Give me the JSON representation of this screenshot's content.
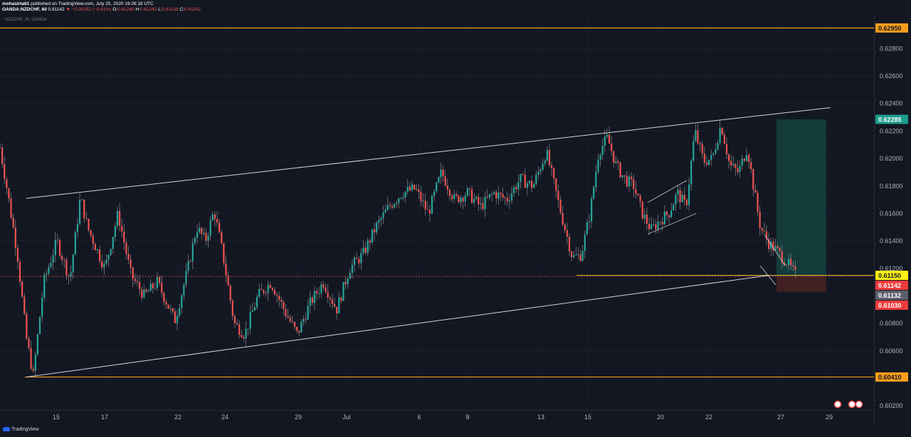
{
  "header": {
    "author": "mohasirta61",
    "published_text": "published on TradingView.com, July 25, 2020 19:26:18 UTC",
    "symbol": "OANDA:NZDCHF, 60",
    "close_value": "0.61142",
    "change_text": "▼ −0.00252 (−0.41%)",
    "open_label": "O:",
    "open_value": "0.61240",
    "high_label": "H:",
    "high_value": "0.61262",
    "low_label": "L:",
    "low_value": "0.61138",
    "close_label": "C:",
    "close_value2": "0.61142"
  },
  "symbol_tag": "NZDCHF, 1h, OANDA",
  "footer": {
    "brand": "TradingView"
  },
  "colors": {
    "background": "#131722",
    "up_candle": "#26a69a",
    "down_candle": "#ef5350",
    "wick": "#8a8a8a",
    "support_line": "#f59d1b",
    "channel_line": "#d1d4dc",
    "target_zone": "#123b3a",
    "stop_zone": "#402022",
    "label_green": "#1e9c8d",
    "label_yellow": "#fff212",
    "label_red": "#ef3b3b",
    "label_gray": "#5d606b",
    "label_orange": "#f59d1b"
  },
  "chart_data": {
    "type": "candlestick",
    "instrument": "NZDCHF",
    "timeframe": "1h",
    "x_ticks": [
      "15",
      "17",
      "22",
      "24",
      "29",
      "Jul",
      "6",
      "8",
      "13",
      "15",
      "20",
      "22",
      "27",
      "29"
    ],
    "y_ticks": [
      "0.62800",
      "0.62600",
      "0.62400",
      "0.62200",
      "0.62000",
      "0.61800",
      "0.61600",
      "0.61400",
      "0.61200",
      "0.60800",
      "0.60600",
      "0.60200"
    ],
    "ylim": [
      0.6017,
      0.6305
    ],
    "price_labels": [
      {
        "value": "0.62950",
        "kind": "support"
      },
      {
        "value": "0.62285",
        "kind": "target"
      },
      {
        "value": "0.61150",
        "kind": "entry"
      },
      {
        "value": "0.61142",
        "kind": "last"
      },
      {
        "value": "0.61132",
        "kind": "gray"
      },
      {
        "value": "0.61030",
        "kind": "stop"
      },
      {
        "value": "0.60410",
        "kind": "support"
      }
    ],
    "horizontal_levels": [
      0.6295,
      0.6041,
      0.6115
    ],
    "channel": {
      "upper": {
        "from": {
          "t": 0.03,
          "p": 0.6171
        },
        "to": {
          "t": 0.95,
          "p": 0.6237
        }
      },
      "lower": {
        "from": {
          "t": 0.03,
          "p": 0.6041
        },
        "to": {
          "t": 0.88,
          "p": 0.6115
        }
      }
    },
    "position": {
      "entry": 0.6115,
      "target": 0.62285,
      "stop": 0.6103
    },
    "price_path": [
      [
        0.0,
        0.6208
      ],
      [
        0.01,
        0.617
      ],
      [
        0.02,
        0.613
      ],
      [
        0.03,
        0.607
      ],
      [
        0.038,
        0.6042
      ],
      [
        0.05,
        0.611
      ],
      [
        0.065,
        0.614
      ],
      [
        0.08,
        0.6112
      ],
      [
        0.092,
        0.6172
      ],
      [
        0.1,
        0.615
      ],
      [
        0.11,
        0.6135
      ],
      [
        0.12,
        0.612
      ],
      [
        0.135,
        0.616
      ],
      [
        0.15,
        0.6115
      ],
      [
        0.165,
        0.61
      ],
      [
        0.18,
        0.611
      ],
      [
        0.2,
        0.6082
      ],
      [
        0.215,
        0.612
      ],
      [
        0.225,
        0.615
      ],
      [
        0.235,
        0.614
      ],
      [
        0.245,
        0.6162
      ],
      [
        0.255,
        0.613
      ],
      [
        0.268,
        0.608
      ],
      [
        0.28,
        0.6072
      ],
      [
        0.295,
        0.61
      ],
      [
        0.31,
        0.611
      ],
      [
        0.325,
        0.609
      ],
      [
        0.34,
        0.6072
      ],
      [
        0.355,
        0.6095
      ],
      [
        0.37,
        0.611
      ],
      [
        0.385,
        0.609
      ],
      [
        0.4,
        0.612
      ],
      [
        0.415,
        0.613
      ],
      [
        0.43,
        0.615
      ],
      [
        0.445,
        0.6165
      ],
      [
        0.46,
        0.6175
      ],
      [
        0.475,
        0.6178
      ],
      [
        0.49,
        0.616
      ],
      [
        0.505,
        0.619
      ],
      [
        0.52,
        0.617
      ],
      [
        0.535,
        0.6175
      ],
      [
        0.55,
        0.6165
      ],
      [
        0.565,
        0.6175
      ],
      [
        0.58,
        0.617
      ],
      [
        0.595,
        0.6185
      ],
      [
        0.61,
        0.618
      ],
      [
        0.625,
        0.6205
      ],
      [
        0.64,
        0.6165
      ],
      [
        0.655,
        0.6128
      ],
      [
        0.665,
        0.613
      ],
      [
        0.675,
        0.616
      ],
      [
        0.685,
        0.6205
      ],
      [
        0.695,
        0.6215
      ],
      [
        0.705,
        0.6195
      ],
      [
        0.715,
        0.6185
      ],
      [
        0.725,
        0.618
      ],
      [
        0.735,
        0.616
      ],
      [
        0.745,
        0.6148
      ],
      [
        0.755,
        0.6155
      ],
      [
        0.765,
        0.616
      ],
      [
        0.775,
        0.6175
      ],
      [
        0.785,
        0.6165
      ],
      [
        0.795,
        0.622
      ],
      [
        0.805,
        0.6198
      ],
      [
        0.815,
        0.62
      ],
      [
        0.825,
        0.6225
      ],
      [
        0.835,
        0.6195
      ],
      [
        0.845,
        0.619
      ],
      [
        0.855,
        0.6208
      ],
      [
        0.862,
        0.618
      ],
      [
        0.87,
        0.615
      ],
      [
        0.88,
        0.6138
      ],
      [
        0.89,
        0.6132
      ],
      [
        0.9,
        0.6125
      ],
      [
        0.91,
        0.6115
      ]
    ]
  }
}
